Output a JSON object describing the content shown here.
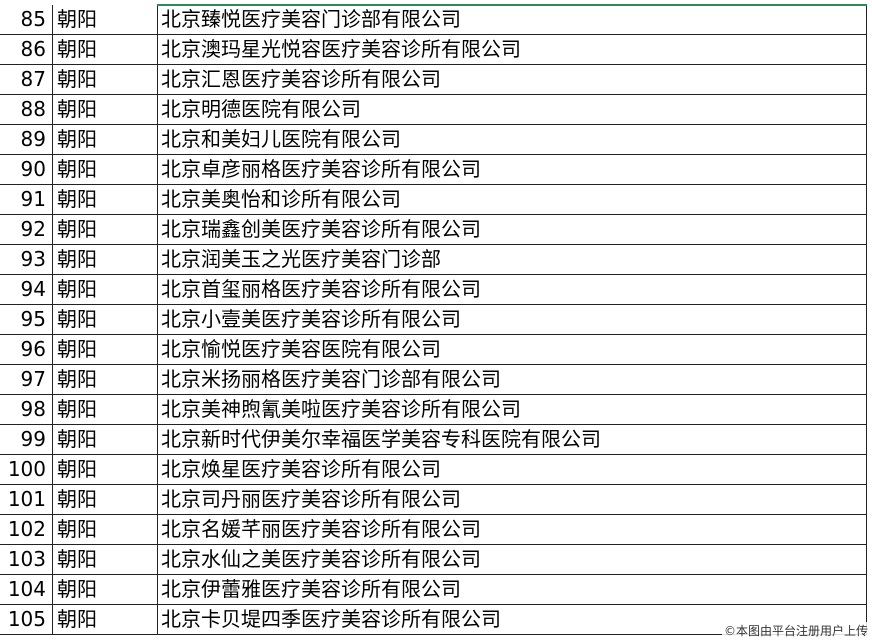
{
  "table": {
    "rows": [
      [
        85,
        "朝阳",
        "北京臻悦医疗美容门诊部有限公司"
      ],
      [
        86,
        "朝阳",
        "北京澳玛星光悦容医疗美容诊所有限公司"
      ],
      [
        87,
        "朝阳",
        "北京汇恩医疗美容诊所有限公司"
      ],
      [
        88,
        "朝阳",
        "北京明德医院有限公司"
      ],
      [
        89,
        "朝阳",
        "北京和美妇儿医院有限公司"
      ],
      [
        90,
        "朝阳",
        "北京卓彦丽格医疗美容诊所有限公司"
      ],
      [
        91,
        "朝阳",
        "北京美奥怡和诊所有限公司"
      ],
      [
        92,
        "朝阳",
        "北京瑞鑫创美医疗美容诊所有限公司"
      ],
      [
        93,
        "朝阳",
        "北京润美玉之光医疗美容门诊部"
      ],
      [
        94,
        "朝阳",
        "北京首玺丽格医疗美容诊所有限公司"
      ],
      [
        95,
        "朝阳",
        "北京小壹美医疗美容诊所有限公司"
      ],
      [
        96,
        "朝阳",
        "北京愉悦医疗美容医院有限公司"
      ],
      [
        97,
        "朝阳",
        "北京米扬丽格医疗美容门诊部有限公司"
      ],
      [
        98,
        "朝阳",
        "北京美神煦氰美啦医疗美容诊所有限公司"
      ],
      [
        99,
        "朝阳",
        "北京新时代伊美尔幸福医学美容专科医院有限公司"
      ],
      [
        100,
        "朝阳",
        "北京焕星医疗美容诊所有限公司"
      ],
      [
        101,
        "朝阳",
        "北京司丹丽医疗美容诊所有限公司"
      ],
      [
        102,
        "朝阳",
        "北京名媛芊丽医疗美容诊所有限公司"
      ],
      [
        103,
        "朝阳",
        "北京水仙之美医疗美容诊所有限公司"
      ],
      [
        104,
        "朝阳",
        "北京伊蕾雅医疗美容诊所有限公司"
      ],
      [
        105,
        "朝阳",
        "北京卡贝堤四季医疗美容诊所有限公司"
      ]
    ]
  },
  "watermark": "©本图由平台注册用户上传"
}
